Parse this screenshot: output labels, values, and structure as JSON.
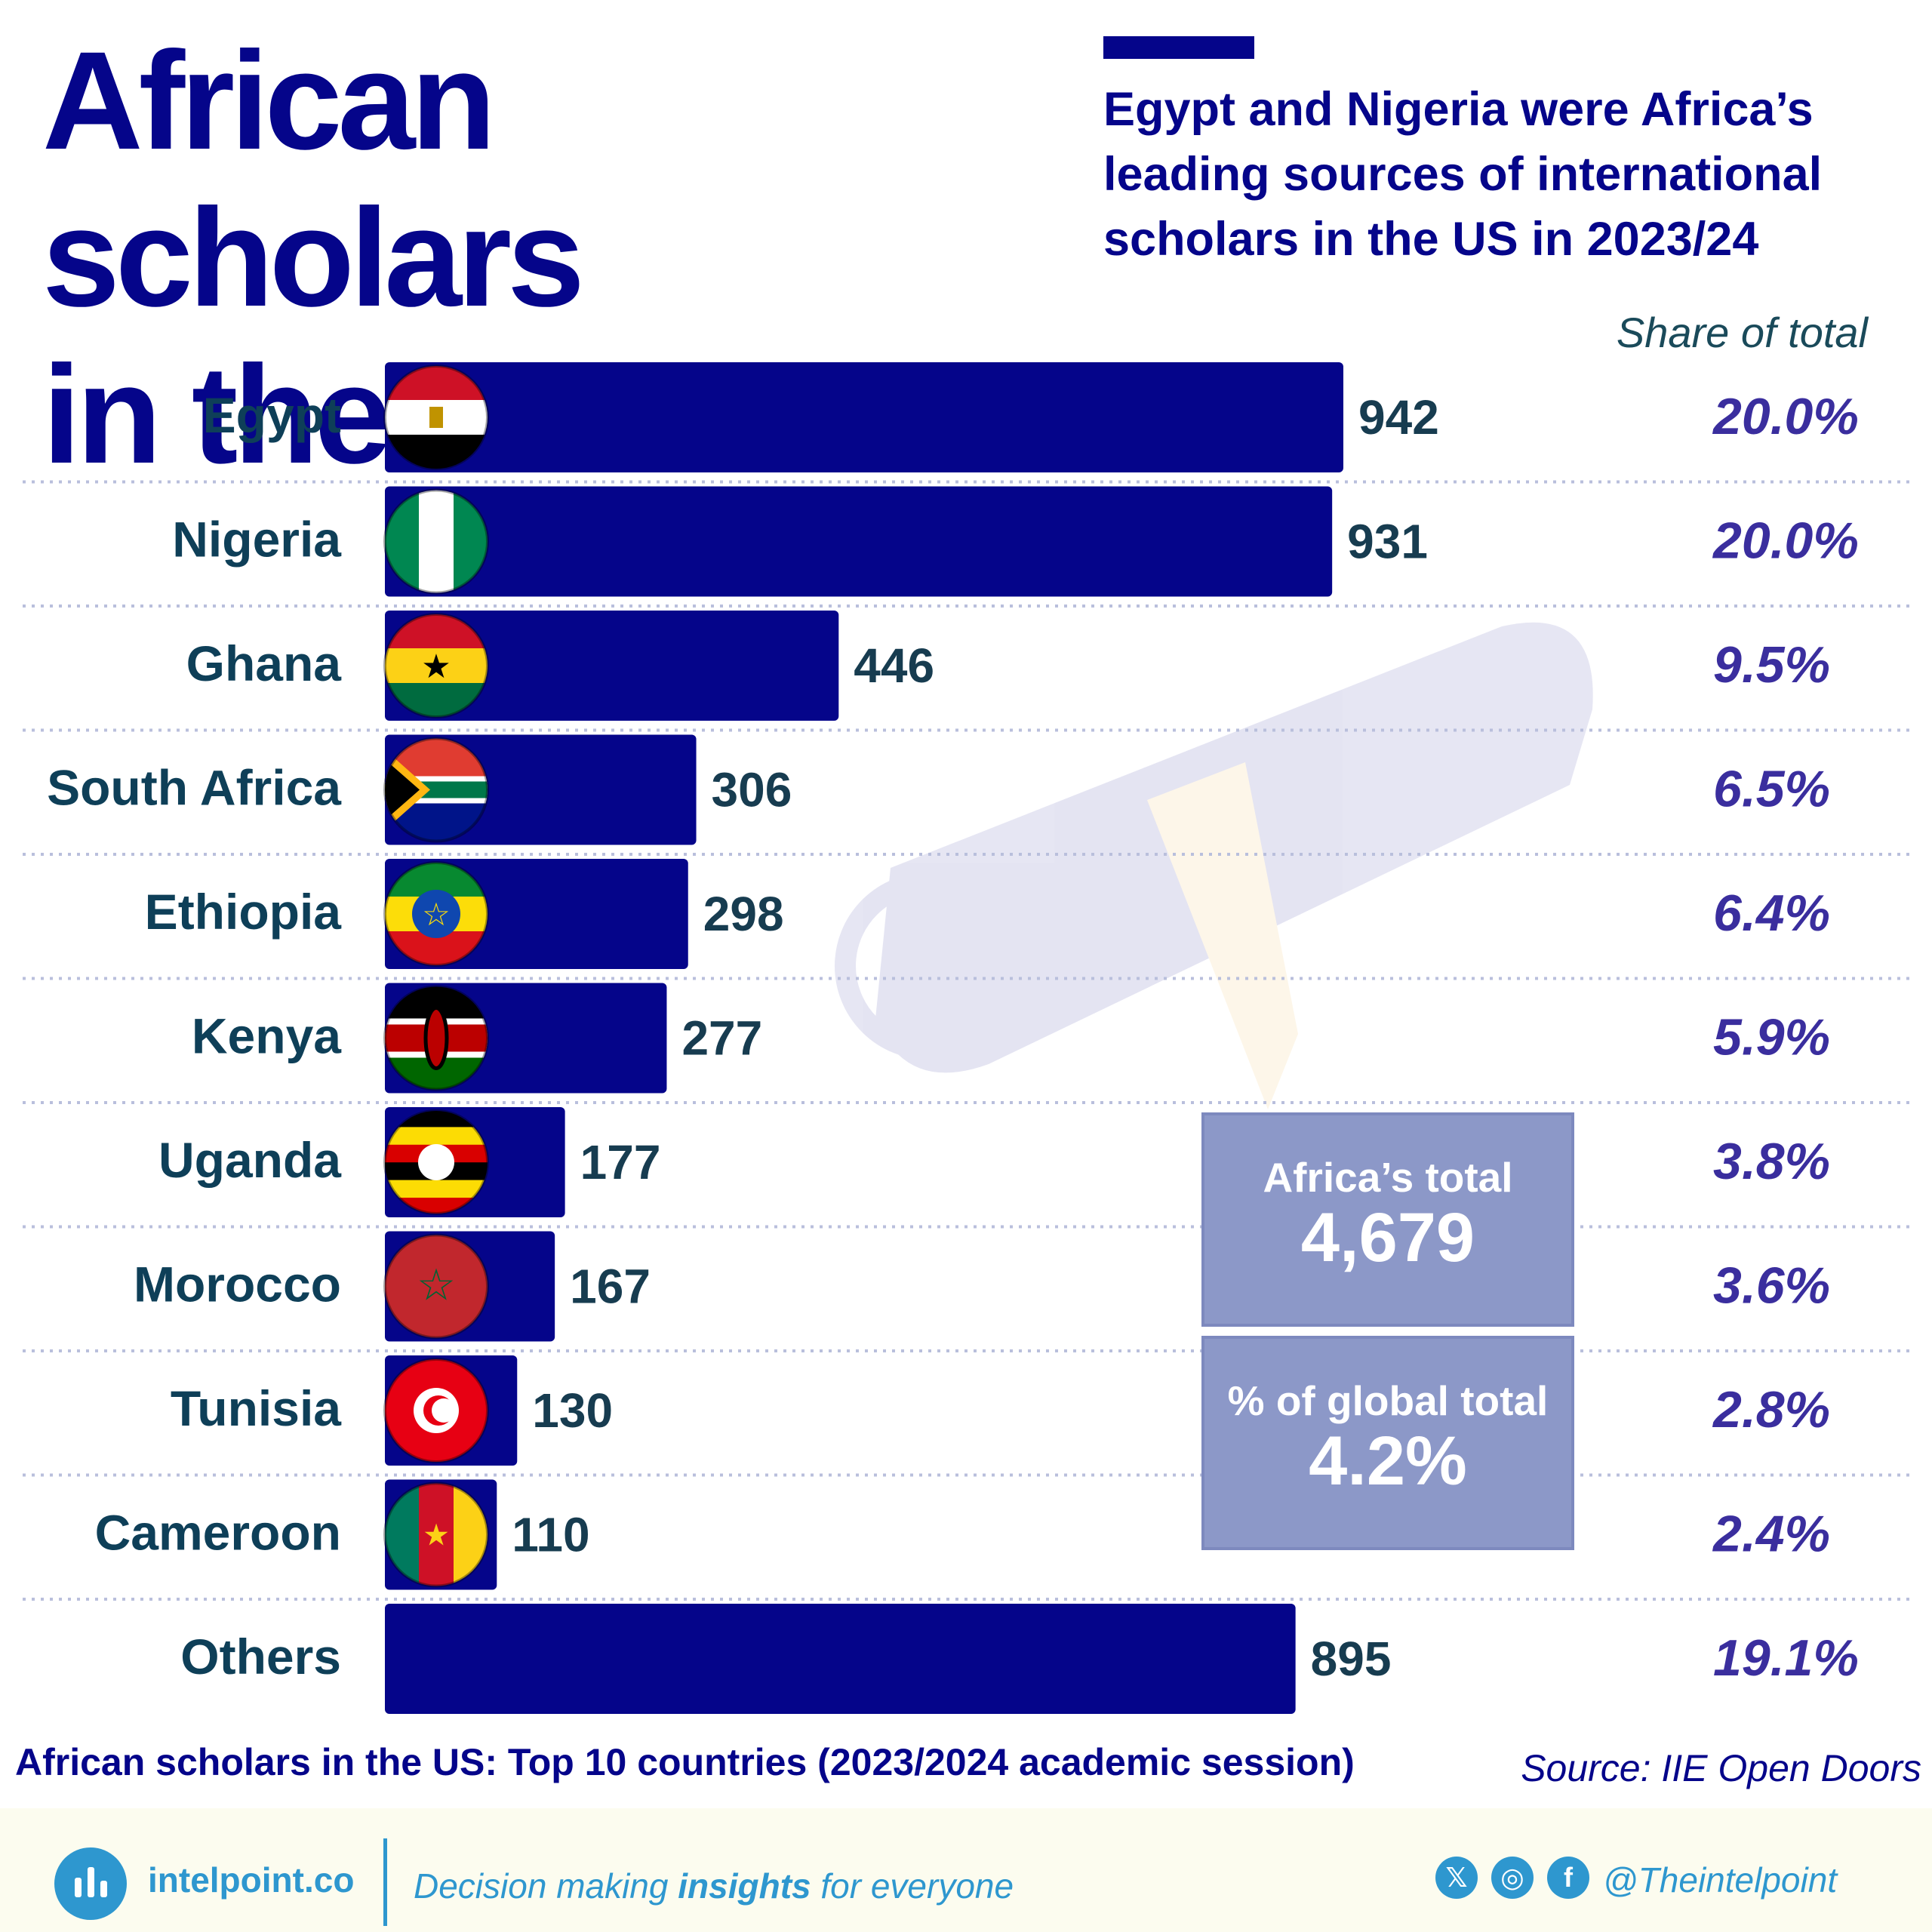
{
  "header": {
    "title_line1": "African scholars",
    "title_line2": "in the US",
    "subtitle": "Egypt and Nigeria were Africa’s leading sources of international scholars in the US in 2023/24",
    "share_header": "Share of total"
  },
  "colors": {
    "bar": "#05058a",
    "country_label": "#0e3f58",
    "value_label": "#173c50",
    "share_label": "#3a2e9e",
    "accent": "#2e97cf",
    "box": "#8c98c8"
  },
  "chart_data": {
    "type": "bar",
    "orientation": "horizontal",
    "categories": [
      "Egypt",
      "Nigeria",
      "Ghana",
      "South Africa",
      "Ethiopia",
      "Kenya",
      "Uganda",
      "Morocco",
      "Tunisia",
      "Cameroon",
      "Others"
    ],
    "values": [
      942,
      931,
      446,
      306,
      298,
      277,
      177,
      167,
      130,
      110,
      895
    ],
    "value_labels": [
      "942",
      "931",
      "446",
      "306",
      "298",
      "277",
      "177",
      "167",
      "130",
      "110",
      "895"
    ],
    "share_labels": [
      "20.0%",
      "20.0%",
      "9.5%",
      "6.5%",
      "6.4%",
      "5.9%",
      "3.8%",
      "3.6%",
      "2.8%",
      "2.4%",
      "19.1%"
    ],
    "flags": [
      "egypt-flag",
      "nigeria-flag",
      "ghana-flag",
      "south-africa-flag",
      "ethiopia-flag",
      "kenya-flag",
      "uganda-flag",
      "morocco-flag",
      "tunisia-flag",
      "cameroon-flag",
      null
    ],
    "xlim": [
      0,
      942
    ],
    "grid": false,
    "caption": "African scholars in the US: Top 10 countries (2023/2024 academic session)"
  },
  "summary": {
    "africa_total_label": "Africa’s total",
    "africa_total_value": "4,679",
    "global_share_label": "% of global total",
    "global_share_value": "4.2%"
  },
  "source": "Source: IIE Open Doors",
  "footer": {
    "brand": "intelpoint.co",
    "tagline_pre": "Decision making ",
    "tagline_bold": "insights",
    "tagline_post": " for everyone",
    "social_x": "𝕏",
    "social_instagram": "◎",
    "social_facebook": "f",
    "handle": "@Theintelpoint"
  }
}
